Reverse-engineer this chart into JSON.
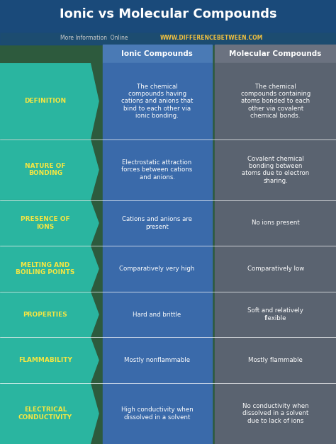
{
  "title": "Ionic vs Molecular Compounds",
  "subtitle_plain": "More Information  Online",
  "subtitle_url": "WWW.DIFFERENCEBETWEEN.COM",
  "header_ionic": "Ionic Compounds",
  "header_molecular": "Molecular Compounds",
  "rows": [
    {
      "label": "DEFINITION",
      "ionic": "The chemical\ncompounds having\ncations and anions that\nbind to each other via\nionic bonding.",
      "molecular": "The chemical\ncompounds containing\natoms bonded to each\nother via covalent\nchemical bonds."
    },
    {
      "label": "NATURE OF\nBONDING",
      "ionic": "Electrostatic attraction\nforces between cations\nand anions.",
      "molecular": "Covalent chemical\nbonding between\natoms due to electron\nsharing."
    },
    {
      "label": "PRESENCE OF\nIONS",
      "ionic": "Cations and anions are\npresent",
      "molecular": "No ions present"
    },
    {
      "label": "MELTING AND\nBOILING POINTS",
      "ionic": "Comparatively very high",
      "molecular": "Comparatively low"
    },
    {
      "label": "PROPERTIES",
      "ionic": "Hard and brittle",
      "molecular": "Soft and relatively\nflexible"
    },
    {
      "label": "FLAMMABILITY",
      "ionic": "Mostly nonflammable",
      "molecular": "Mostly flammable"
    },
    {
      "label": "ELECTRICAL\nCONDUCTIVITY",
      "ionic": "High conductivity when\ndissolved in a solvent",
      "molecular": "No conductivity when\ndissolved in a solvent\ndue to lack of ions"
    }
  ],
  "colors": {
    "title_bg": "#1a4a7a",
    "title_text": "#ffffff",
    "subtitle_plain": "#cccccc",
    "subtitle_url": "#f0c040",
    "header_ionic_bg": "#4a7ab5",
    "header_molecular_bg": "#6b7280",
    "header_text": "#ffffff",
    "label_bg": "#2ab5a0",
    "label_text": "#f5e642",
    "ionic_bg": "#3a6aaa",
    "molecular_bg": "#5a6370",
    "cell_text": "#ffffff",
    "separator": "#ffffff",
    "background": "#2d5a3d"
  },
  "figsize": [
    4.74,
    6.27
  ],
  "dpi": 100
}
